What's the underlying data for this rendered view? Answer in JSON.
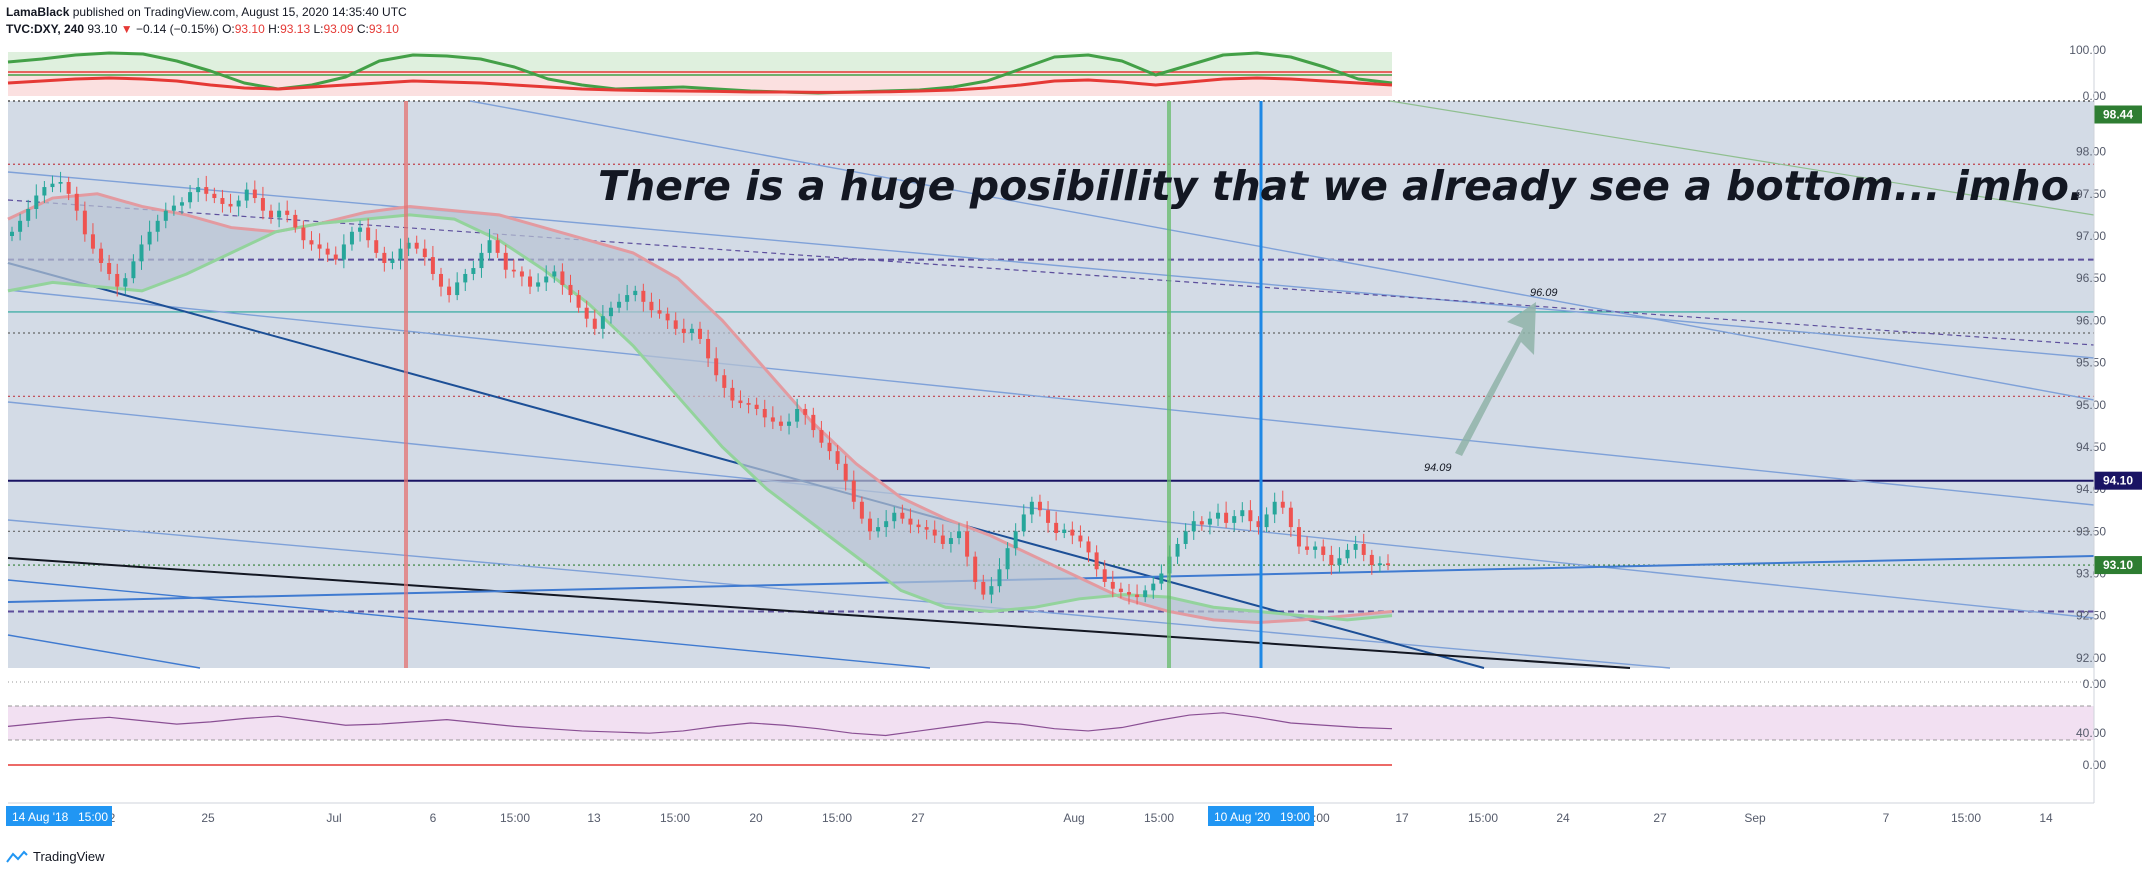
{
  "header": {
    "author": "LamaBlack",
    "published": "published on TradingView.com, August 15, 2020 14:35:40 UTC",
    "symbol": "TVC:DXY, 240",
    "last": "93.10",
    "change": "−0.14 (−0.15%)",
    "o_label": "O:",
    "o_value": "93.10",
    "h_label": "H:",
    "h_value": "93.13",
    "l_label": "L:",
    "l_value": "93.09",
    "c_label": "C:",
    "c_value": "93.10"
  },
  "footer": {
    "brand": "TradingView"
  },
  "colors": {
    "up": "#26a69a",
    "down": "#ef5350",
    "panel_bg": "#d3dbe6",
    "ema_fast": "#e39aa0",
    "ema_slow": "#93d39c",
    "indicator_green": "#43a047",
    "indicator_red": "#e53935",
    "rsi_line": "#8a4f94"
  },
  "chart_data": [
    {
      "type": "candlestick",
      "annotation": "There is a huge posibillity that we already see a bottom... imho.",
      "y_range": [
        91.88,
        98.6
      ],
      "y_ticks": [
        "98.00",
        "97.50",
        "97.00",
        "96.50",
        "96.00",
        "95.50",
        "95.00",
        "94.50",
        "94.00",
        "93.50",
        "93.00",
        "92.50",
        "92.00"
      ],
      "x_ticks": [
        "2",
        "25",
        "Jul",
        "6",
        "15:00",
        "13",
        "15:00",
        "20",
        "15:00",
        "27",
        "Aug",
        "15:00",
        "10 Aug '20",
        "6:00",
        "17",
        "15:00",
        "24",
        "27",
        "Sep",
        "7",
        "15:00",
        "14"
      ],
      "x_time_labels": {
        "left": "14 Aug '18",
        "left_time": "15:00",
        "highlight": "10 Aug '20",
        "highlight_time": "19:00"
      },
      "price_labels": [
        {
          "value": 98.44,
          "text": "98.44",
          "color": "#2e7d32"
        },
        {
          "value": 94.1,
          "text": "94.10",
          "color": "#1a1464"
        },
        {
          "value": 93.1,
          "text": "93.10",
          "color": "#2e7d32"
        }
      ],
      "horizontal_levels": [
        {
          "value": 97.85,
          "style": "dotted",
          "color": "#c0404a"
        },
        {
          "value": 96.72,
          "style": "dashed",
          "color": "#5c4e9c"
        },
        {
          "value": 96.1,
          "style": "solid",
          "color": "#26a69a"
        },
        {
          "value": 95.85,
          "style": "dotted",
          "color": "#666666"
        },
        {
          "value": 95.1,
          "style": "dotted",
          "color": "#c0404a"
        },
        {
          "value": 94.1,
          "style": "solid",
          "color": "#1a1464"
        },
        {
          "value": 93.5,
          "style": "dotted",
          "color": "#666666"
        },
        {
          "value": 93.1,
          "style": "dotted",
          "color": "#2e7d32"
        },
        {
          "value": 92.55,
          "style": "dashed",
          "color": "#5c4e9c"
        }
      ],
      "level_labels": [
        {
          "value": 96.09,
          "text": "96.09"
        },
        {
          "value": 94.09,
          "text": "94.09"
        }
      ],
      "series": [
        {
          "name": "DXY close",
          "values": [
            97.05,
            97.18,
            97.32,
            97.48,
            97.58,
            97.62,
            97.64,
            97.5,
            97.3,
            97.02,
            96.85,
            96.68,
            96.55,
            96.4,
            96.5,
            96.7,
            96.9,
            97.05,
            97.18,
            97.3,
            97.36,
            97.4,
            97.52,
            97.58,
            97.5,
            97.45,
            97.38,
            97.35,
            97.42,
            97.55,
            97.45,
            97.3,
            97.22,
            97.3,
            97.25,
            97.1,
            96.95,
            96.9,
            96.85,
            96.78,
            96.72,
            96.9,
            97.05,
            97.1,
            96.95,
            96.8,
            96.68,
            96.72,
            96.85,
            96.92,
            96.85,
            96.75,
            96.55,
            96.4,
            96.3,
            96.45,
            96.55,
            96.62,
            96.8,
            96.95,
            96.8,
            96.6,
            96.58,
            96.52,
            96.4,
            96.45,
            96.52,
            96.58,
            96.42,
            96.3,
            96.15,
            96.02,
            95.9,
            96.05,
            96.15,
            96.22,
            96.3,
            96.35,
            96.22,
            96.12,
            96.08,
            96.0,
            95.9,
            95.85,
            95.9,
            95.78,
            95.55,
            95.35,
            95.2,
            95.05,
            95.02,
            95.0,
            94.95,
            94.85,
            94.8,
            94.75,
            94.8,
            94.95,
            94.88,
            94.7,
            94.55,
            94.45,
            94.3,
            94.1,
            93.85,
            93.65,
            93.5,
            93.55,
            93.62,
            93.72,
            93.65,
            93.58,
            93.55,
            93.52,
            93.45,
            93.35,
            93.42,
            93.5,
            93.2,
            92.9,
            92.75,
            92.85,
            93.05,
            93.3,
            93.5,
            93.7,
            93.85,
            93.75,
            93.6,
            93.48,
            93.52,
            93.45,
            93.38,
            93.25,
            93.05,
            92.9,
            92.82,
            92.78,
            92.75,
            92.72,
            92.8,
            92.88,
            93.0,
            93.2,
            93.35,
            93.5,
            93.62,
            93.58,
            93.65,
            93.72,
            93.6,
            93.68,
            93.75,
            93.62,
            93.55,
            93.7,
            93.85,
            93.78,
            93.55,
            93.32,
            93.28,
            93.32,
            93.22,
            93.1,
            93.18,
            93.28,
            93.35,
            93.22,
            93.1,
            93.12,
            93.1
          ]
        },
        {
          "name": "upper band",
          "values": [
            97.2,
            97.45,
            97.5,
            97.35,
            97.25,
            97.1,
            97.05,
            97.15,
            97.28,
            97.35,
            97.3,
            97.25,
            97.1,
            96.95,
            96.8,
            96.5,
            96.0,
            95.4,
            94.8,
            94.3,
            93.9,
            93.65,
            93.45,
            93.2,
            92.95,
            92.7,
            92.55,
            92.45,
            92.42,
            92.45,
            92.5,
            92.55
          ]
        },
        {
          "name": "lower band",
          "values": [
            96.35,
            96.45,
            96.4,
            96.35,
            96.55,
            96.8,
            97.05,
            97.15,
            97.2,
            97.25,
            97.2,
            96.95,
            96.6,
            96.2,
            95.7,
            95.1,
            94.5,
            94.0,
            93.6,
            93.2,
            92.8,
            92.6,
            92.55,
            92.6,
            92.7,
            92.75,
            92.72,
            92.6,
            92.55,
            92.5,
            92.45,
            92.5
          ]
        }
      ]
    },
    {
      "type": "line",
      "name": "top oscillator",
      "y_ticks": [
        "100.00",
        "0.00"
      ],
      "series": [
        {
          "name": "green line",
          "values": [
            0.55,
            0.7,
            0.9,
            1.0,
            0.95,
            0.6,
            0.1,
            -0.5,
            -0.8,
            -0.6,
            -0.2,
            0.6,
            0.9,
            0.85,
            0.7,
            0.3,
            -0.3,
            -0.6,
            -0.8,
            -0.75,
            -0.7,
            -0.8,
            -0.9,
            -0.95,
            -1.0,
            -0.95,
            -0.9,
            -0.85,
            -0.7,
            -0.4,
            0.2,
            0.8,
            0.9,
            0.6,
            -0.1,
            0.4,
            0.9,
            1.0,
            0.8,
            0.3,
            -0.3,
            -0.5
          ]
        },
        {
          "name": "red line",
          "values": [
            -0.5,
            -0.4,
            -0.3,
            -0.25,
            -0.3,
            -0.4,
            -0.6,
            -0.75,
            -0.8,
            -0.7,
            -0.6,
            -0.5,
            -0.4,
            -0.45,
            -0.5,
            -0.6,
            -0.7,
            -0.8,
            -0.85,
            -0.88,
            -0.9,
            -0.92,
            -0.95,
            -0.95,
            -0.97,
            -0.96,
            -0.94,
            -0.9,
            -0.85,
            -0.75,
            -0.6,
            -0.4,
            -0.35,
            -0.45,
            -0.6,
            -0.45,
            -0.3,
            -0.25,
            -0.3,
            -0.4,
            -0.5,
            -0.6
          ]
        }
      ]
    },
    {
      "type": "line",
      "name": "RSI",
      "y_ticks": [
        "0.00",
        "40.00",
        "0.00"
      ],
      "series": [
        {
          "name": "rsi",
          "values": [
            42,
            45,
            48,
            50,
            47,
            44,
            46,
            49,
            51,
            47,
            43,
            44,
            46,
            48,
            45,
            42,
            40,
            38,
            37,
            36,
            38,
            42,
            45,
            43,
            40,
            36,
            34,
            38,
            42,
            46,
            44,
            40,
            38,
            41,
            47,
            52,
            54,
            50,
            45,
            43,
            41,
            40
          ]
        }
      ]
    }
  ]
}
